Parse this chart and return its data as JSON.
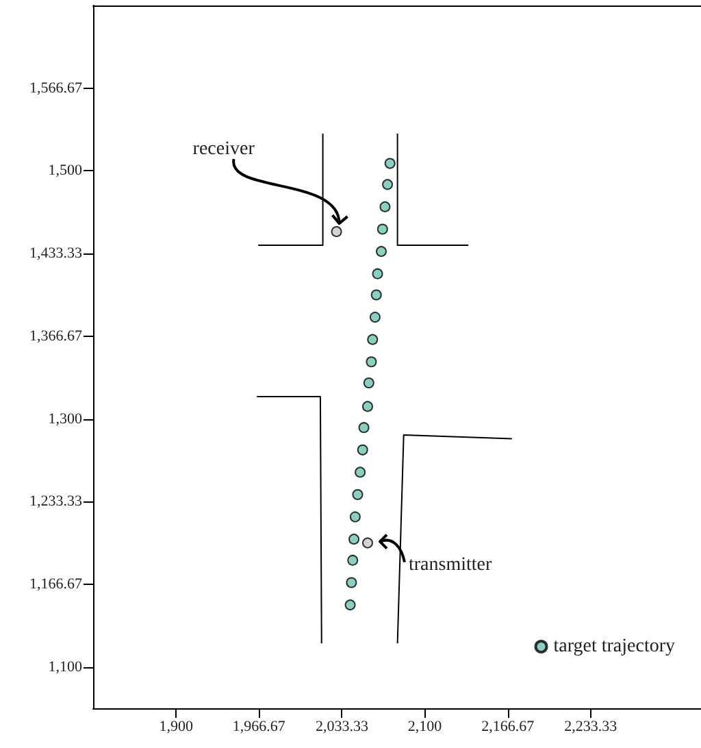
{
  "chart_data": {
    "type": "scatter",
    "marker": "circle",
    "legend": "bottom right",
    "grid": false,
    "xlim": [
      1833.33,
      2322
    ],
    "ylim": [
      1066.67,
      1633.33
    ],
    "xticks": [
      {
        "value": 1900,
        "label": "1,900"
      },
      {
        "value": 1966.67,
        "label": "1,966.67"
      },
      {
        "value": 2033.33,
        "label": "2,033.33"
      },
      {
        "value": 2100,
        "label": "2,100"
      },
      {
        "value": 2166.67,
        "label": "2,166.67"
      },
      {
        "value": 2233.33,
        "label": "2,233.33"
      }
    ],
    "yticks": [
      {
        "value": 1100,
        "label": "1,100"
      },
      {
        "value": 1166.67,
        "label": "1,166.67"
      },
      {
        "value": 1233.33,
        "label": "1,233.33"
      },
      {
        "value": 1300,
        "label": "1,300"
      },
      {
        "value": 1366.67,
        "label": "1,366.67"
      },
      {
        "value": 1433.33,
        "label": "1,433.33"
      },
      {
        "value": 1500,
        "label": "1,500"
      },
      {
        "value": 1566.67,
        "label": "1,566.67"
      }
    ],
    "annotations": [
      {
        "text": "receiver",
        "x": 2029,
        "y": 1451
      },
      {
        "text": "transmitter",
        "x": 2054,
        "y": 1200
      }
    ],
    "series": [
      {
        "name": "target trajectory",
        "color": "#6cc4b4",
        "x": [
          2072,
          2070,
          2068,
          2066,
          2065,
          2062,
          2061,
          2060,
          2058,
          2057,
          2055,
          2054,
          2051,
          2050,
          2048,
          2046,
          2044,
          2043,
          2042,
          2041,
          2040
        ],
        "values": [
          1506,
          1489,
          1471,
          1453,
          1435,
          1417,
          1400,
          1382,
          1364,
          1346,
          1329,
          1310,
          1293,
          1275,
          1257,
          1239,
          1221,
          1203,
          1186,
          1168,
          1150
        ]
      },
      {
        "color": "#c8c8c8",
        "x": [
          2029,
          2054
        ],
        "values": [
          1451,
          1200
        ]
      },
      {
        "type": "line",
        "marker": "none",
        "color": "#000000",
        "x": [
          2018,
          2018,
          1966
        ],
        "values": [
          1530,
          1440,
          1440
        ]
      },
      {
        "type": "line",
        "marker": "none",
        "color": "#000000",
        "x": [
          2078,
          2078,
          2135
        ],
        "values": [
          1530,
          1440,
          1440
        ]
      },
      {
        "type": "line",
        "marker": "none",
        "color": "#000000",
        "x": [
          1965,
          2016,
          2017
        ],
        "values": [
          1318,
          1318,
          1119
        ]
      },
      {
        "type": "line",
        "marker": "none",
        "color": "#000000",
        "x": [
          2170,
          2083,
          2078
        ],
        "values": [
          1284,
          1287,
          1119
        ]
      }
    ]
  }
}
